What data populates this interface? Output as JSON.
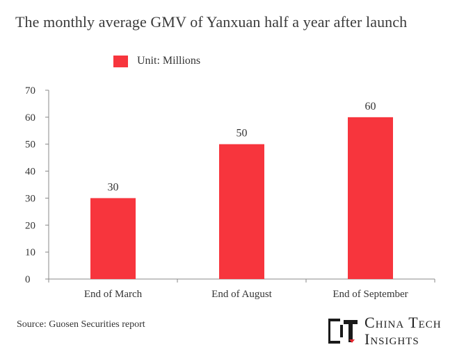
{
  "title": "The monthly average GMV of Yanxuan half a year after launch",
  "legend_label": "Unit: Millions",
  "source": "Source: Guosen Securities report",
  "brand": {
    "line1": "China Tech",
    "line2": "Insights",
    "logo_text": "CT",
    "logo_color": "#1a1a1a",
    "accent_color": "#e8262e"
  },
  "colors": {
    "bar": "#f7353d",
    "axis": "#888888",
    "text": "#333333"
  },
  "chart_data": {
    "type": "bar",
    "title": "The monthly average GMV of Yanxuan half a year after launch",
    "xlabel": "",
    "ylabel": "",
    "categories": [
      "End of March",
      "End of August",
      "End of September"
    ],
    "series": [
      {
        "name": "Unit: Millions",
        "values": [
          30,
          50,
          60
        ]
      }
    ],
    "data_labels": [
      "30",
      "50",
      "60"
    ],
    "ylim": [
      0,
      70
    ],
    "yticks": [
      0,
      10,
      20,
      30,
      40,
      50,
      60,
      70
    ],
    "grid": false,
    "legend": "top-left"
  }
}
